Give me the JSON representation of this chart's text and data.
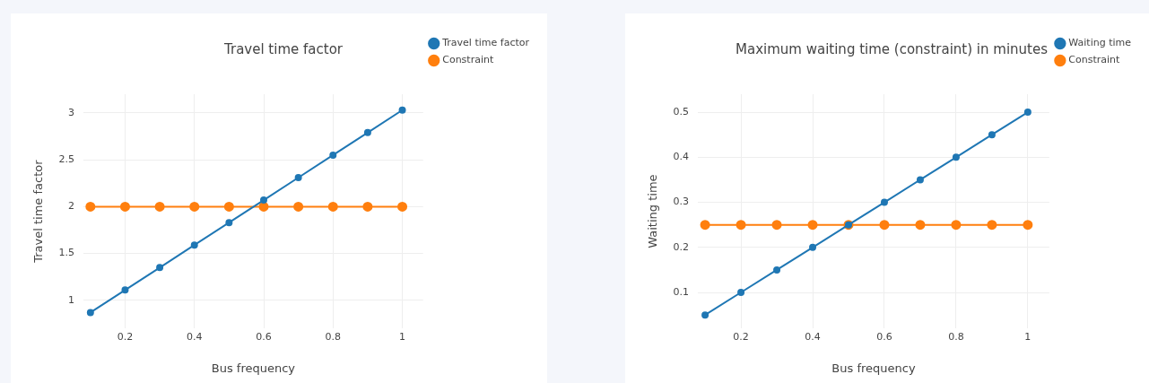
{
  "chart_data": [
    {
      "type": "line",
      "title": "Travel time factor",
      "xlabel": "Bus frequency",
      "ylabel": "Travel time factor",
      "x": [
        0.1,
        0.2,
        0.3,
        0.4,
        0.5,
        0.6,
        0.7,
        0.8,
        0.9,
        1
      ],
      "series": [
        {
          "name": "Travel time factor",
          "color": "#1f77b4",
          "values": [
            0.87,
            1.11,
            1.35,
            1.59,
            1.83,
            2.07,
            2.31,
            2.55,
            2.79,
            3.03
          ]
        },
        {
          "name": "Constraint",
          "color": "#ff7f0e",
          "values": [
            2,
            2,
            2,
            2,
            2,
            2,
            2,
            2,
            2,
            2
          ]
        }
      ],
      "xlim": [
        0.08,
        1.06
      ],
      "xticks": [
        0.2,
        0.4,
        0.6,
        0.8,
        1
      ],
      "ylim": [
        0.7,
        3.2
      ],
      "yticks": [
        1,
        1.5,
        2,
        2.5,
        3
      ],
      "grid": true,
      "legend": "top right",
      "marker": "circle"
    },
    {
      "type": "line",
      "title": "Maximum waiting time (constraint) in minutes",
      "xlabel": "Bus frequency",
      "ylabel": "Waiting time",
      "x": [
        0.1,
        0.2,
        0.3,
        0.4,
        0.5,
        0.6,
        0.7,
        0.8,
        0.9,
        1
      ],
      "series": [
        {
          "name": "Waiting time",
          "color": "#1f77b4",
          "values": [
            0.05,
            0.1,
            0.15,
            0.2,
            0.25,
            0.3,
            0.35,
            0.4,
            0.45,
            0.5
          ]
        },
        {
          "name": "Constraint",
          "color": "#ff7f0e",
          "values": [
            0.25,
            0.25,
            0.25,
            0.25,
            0.25,
            0.25,
            0.25,
            0.25,
            0.25,
            0.25
          ]
        }
      ],
      "xlim": [
        0.08,
        1.06
      ],
      "xticks": [
        0.2,
        0.4,
        0.6,
        0.8,
        1
      ],
      "ylim": [
        0.02,
        0.54
      ],
      "yticks": [
        0.1,
        0.2,
        0.3,
        0.4,
        0.5
      ],
      "grid": true,
      "legend": "top right",
      "marker": "circle"
    }
  ]
}
